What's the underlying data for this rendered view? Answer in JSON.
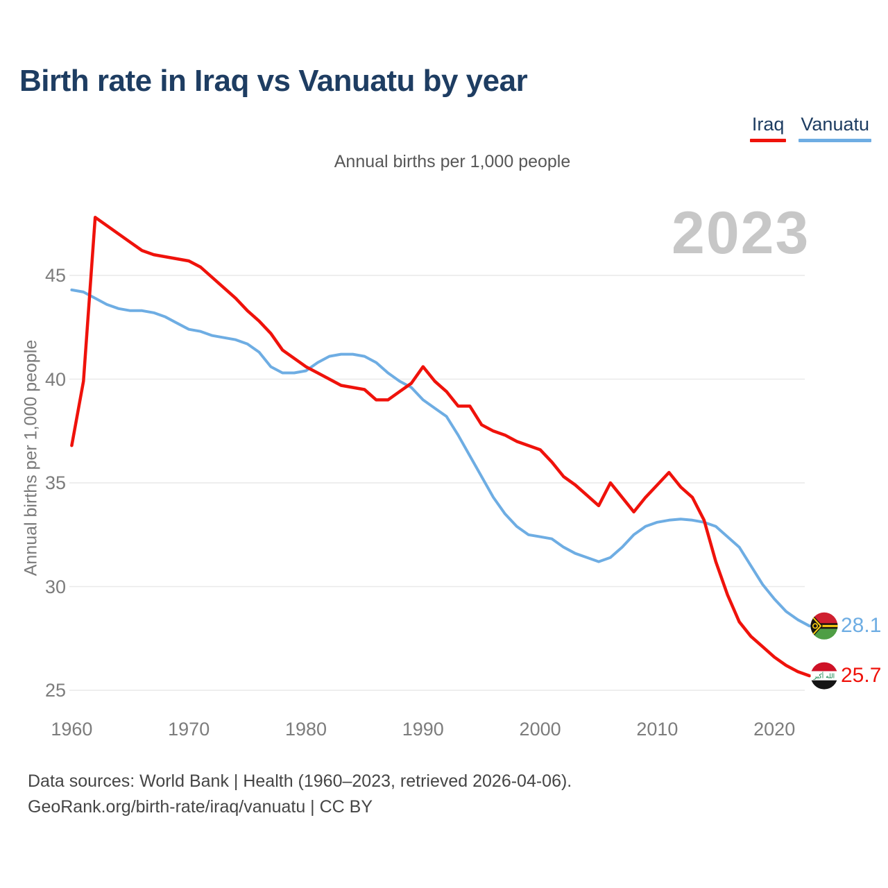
{
  "header": {
    "title": "Birth rate in Iraq vs Vanuatu by year"
  },
  "legend": [
    {
      "label": "Iraq",
      "color": "#ef120b"
    },
    {
      "label": "Vanuatu",
      "color": "#6eade3"
    }
  ],
  "subtitle": "Annual births per 1,000 people",
  "watermark": "2023",
  "end_labels": [
    {
      "series": "Vanuatu",
      "value": "28.1",
      "flag": "vanuatu-flag"
    },
    {
      "series": "Iraq",
      "value": "25.7",
      "flag": "iraq-flag"
    }
  ],
  "footer": {
    "line1": "Data sources: World Bank | Health (1960–2023, retrieved 2026-04-06).",
    "line2": "GeoRank.org/birth-rate/iraq/vanuatu | CC BY"
  },
  "chart_data": {
    "type": "line",
    "title": "Birth rate in Iraq vs Vanuatu by year",
    "ylabel": "Annual births per 1,000 people",
    "xlabel": "",
    "grid": true,
    "legend_position": "top-right",
    "ylim": [
      24.5,
      48.5
    ],
    "yticks": [
      25,
      30,
      35,
      40,
      45
    ],
    "xticks": [
      1960,
      1970,
      1980,
      1990,
      2000,
      2010,
      2020
    ],
    "x": [
      1960,
      1961,
      1962,
      1963,
      1964,
      1965,
      1966,
      1967,
      1968,
      1969,
      1970,
      1971,
      1972,
      1973,
      1974,
      1975,
      1976,
      1977,
      1978,
      1979,
      1980,
      1981,
      1982,
      1983,
      1984,
      1985,
      1986,
      1987,
      1988,
      1989,
      1990,
      1991,
      1992,
      1993,
      1994,
      1995,
      1996,
      1997,
      1998,
      1999,
      2000,
      2001,
      2002,
      2003,
      2004,
      2005,
      2006,
      2007,
      2008,
      2009,
      2010,
      2011,
      2012,
      2013,
      2014,
      2015,
      2016,
      2017,
      2018,
      2019,
      2020,
      2021,
      2022,
      2023
    ],
    "series": [
      {
        "name": "Iraq",
        "color": "#ef120b",
        "final_value": 25.7,
        "values": [
          36.8,
          39.9,
          47.8,
          47.4,
          47.0,
          46.6,
          46.2,
          46.0,
          45.9,
          45.8,
          45.7,
          45.4,
          44.9,
          44.4,
          43.9,
          43.3,
          42.8,
          42.2,
          41.4,
          41.0,
          40.6,
          40.3,
          40.0,
          39.7,
          39.6,
          39.5,
          39.0,
          39.0,
          39.4,
          39.8,
          40.6,
          39.9,
          39.4,
          38.7,
          38.7,
          37.8,
          37.5,
          37.3,
          37.0,
          36.8,
          36.6,
          36.0,
          35.3,
          34.9,
          34.4,
          33.9,
          35.0,
          34.3,
          33.6,
          34.3,
          34.9,
          35.5,
          34.8,
          34.3,
          33.2,
          31.2,
          29.6,
          28.3,
          27.6,
          27.1,
          26.6,
          26.2,
          25.9,
          25.7
        ]
      },
      {
        "name": "Vanuatu",
        "color": "#6eade3",
        "final_value": 28.1,
        "values": [
          44.3,
          44.2,
          43.9,
          43.6,
          43.4,
          43.3,
          43.3,
          43.2,
          43.0,
          42.7,
          42.4,
          42.3,
          42.1,
          42.0,
          41.9,
          41.7,
          41.3,
          40.6,
          40.3,
          40.3,
          40.4,
          40.8,
          41.1,
          41.2,
          41.2,
          41.1,
          40.8,
          40.3,
          39.9,
          39.6,
          39.0,
          38.6,
          38.2,
          37.3,
          36.3,
          35.3,
          34.3,
          33.5,
          32.9,
          32.5,
          32.4,
          32.3,
          31.9,
          31.6,
          31.4,
          31.2,
          31.4,
          31.9,
          32.5,
          32.9,
          33.1,
          33.2,
          33.25,
          33.2,
          33.1,
          32.9,
          32.4,
          31.9,
          31.0,
          30.1,
          29.4,
          28.8,
          28.4,
          28.1
        ]
      }
    ]
  }
}
